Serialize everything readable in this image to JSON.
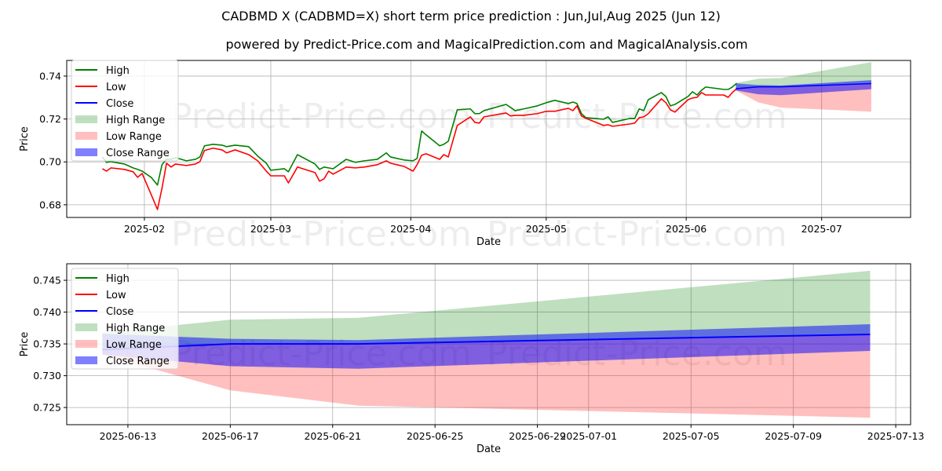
{
  "title": "CADBMD X (CADBMD=X) short term price prediction : Jun,Jul,Aug 2025 (Jun 12)",
  "subtitle": "powered by Predict-Price.com and MagicalPrediction.com and MagicalAnalysis.com",
  "watermark": "Predict-Price.com",
  "colors": {
    "high": "#008000",
    "low": "#ff0000",
    "close": "#0000ff",
    "high_range": "rgba(0,128,0,0.25)",
    "low_range": "rgba(255,0,0,0.25)",
    "close_range": "rgba(0,0,255,0.5)"
  },
  "legend": [
    "High",
    "Low",
    "Close",
    "High Range",
    "Low Range",
    "Close Range"
  ],
  "chart_data": [
    {
      "type": "line",
      "name": "full-history",
      "xlabel": "Date",
      "ylabel": "Price",
      "x_unit": "days since 2025-02-01",
      "xlim": [
        -17.2,
        169.7
      ],
      "ylim": [
        0.6741,
        0.7473
      ],
      "yticks": [
        0.68,
        0.7,
        0.72,
        0.74
      ],
      "ytick_labels": [
        "0.68",
        "0.70",
        "0.72",
        "0.74"
      ],
      "xticks": [
        0,
        28,
        59,
        89,
        120,
        150
      ],
      "xtick_labels": [
        "2025-02",
        "2025-03",
        "2025-04",
        "2025-05",
        "2025-06",
        "2025-07"
      ],
      "grid": true,
      "legend_position": "upper-left",
      "history": {
        "x": [
          -9.3,
          -8.4,
          -7.4,
          -4.4,
          -2.5,
          -1.5,
          -0.5,
          1.5,
          2.9,
          3.9,
          4.9,
          5.9,
          6.9,
          9.3,
          11.3,
          12.3,
          13.3,
          15.2,
          17.2,
          18.2,
          20.1,
          23.1,
          25.1,
          27.0,
          28.0,
          31.0,
          31.9,
          33.9,
          37.8,
          38.8,
          39.8,
          40.8,
          41.8,
          44.7,
          46.7,
          48.7,
          51.6,
          53.6,
          54.5,
          57.5,
          59.5,
          60.4,
          61.4,
          62.4,
          65.4,
          66.3,
          67.3,
          69.3,
          72.2,
          73.2,
          74.2,
          75.2,
          80.1,
          81.1,
          82.1,
          84.0,
          87.0,
          89.0,
          90.9,
          93.9,
          94.9,
          95.8,
          96.8,
          97.8,
          101.7,
          102.7,
          103.7,
          107.6,
          108.6,
          109.6,
          110.6,
          111.6,
          114.5,
          115.5,
          116.5,
          117.5,
          120.4,
          121.4,
          122.4,
          123.4,
          124.3,
          128.3,
          129.3,
          130.2,
          131.2
        ],
        "high": [
          0.7023,
          0.6998,
          0.7001,
          0.699,
          0.6972,
          0.6965,
          0.6957,
          0.6928,
          0.6892,
          0.6987,
          0.7012,
          0.7012,
          0.702,
          0.7005,
          0.7012,
          0.7023,
          0.7075,
          0.7082,
          0.7078,
          0.7071,
          0.7078,
          0.7071,
          0.7027,
          0.6994,
          0.6961,
          0.6968,
          0.6954,
          0.7034,
          0.699,
          0.6965,
          0.6976,
          0.6972,
          0.6968,
          0.7012,
          0.6998,
          0.7005,
          0.7012,
          0.7042,
          0.7023,
          0.7009,
          0.7005,
          0.7016,
          0.7144,
          0.7126,
          0.7075,
          0.7082,
          0.7096,
          0.7243,
          0.7247,
          0.7225,
          0.7225,
          0.7239,
          0.7268,
          0.7254,
          0.7239,
          0.7247,
          0.7261,
          0.7276,
          0.7287,
          0.7272,
          0.7279,
          0.7272,
          0.7225,
          0.7206,
          0.7199,
          0.721,
          0.7184,
          0.7203,
          0.7203,
          0.7247,
          0.7239,
          0.729,
          0.7323,
          0.7305,
          0.7261,
          0.7268,
          0.7305,
          0.7327,
          0.7312,
          0.7334,
          0.7349,
          0.7338,
          0.7338,
          0.7349,
          0.7367
        ],
        "low": [
          0.6968,
          0.6957,
          0.6972,
          0.6965,
          0.6954,
          0.6928,
          0.6946,
          0.6848,
          0.6778,
          0.6877,
          0.6994,
          0.6976,
          0.699,
          0.6983,
          0.699,
          0.7001,
          0.7053,
          0.7064,
          0.7056,
          0.7042,
          0.7056,
          0.7034,
          0.7005,
          0.6957,
          0.6935,
          0.6935,
          0.6902,
          0.6976,
          0.695,
          0.691,
          0.6921,
          0.6957,
          0.6943,
          0.6976,
          0.6972,
          0.6976,
          0.6987,
          0.7005,
          0.6994,
          0.6979,
          0.6957,
          0.6987,
          0.7031,
          0.7038,
          0.7012,
          0.7034,
          0.7023,
          0.717,
          0.721,
          0.7184,
          0.7181,
          0.721,
          0.7228,
          0.7214,
          0.7217,
          0.7217,
          0.7225,
          0.7236,
          0.7236,
          0.725,
          0.7239,
          0.7261,
          0.7214,
          0.7203,
          0.717,
          0.7173,
          0.7166,
          0.7177,
          0.7181,
          0.7206,
          0.721,
          0.7225,
          0.7294,
          0.7276,
          0.7243,
          0.7232,
          0.729,
          0.7298,
          0.7301,
          0.7323,
          0.7312,
          0.7312,
          0.7301,
          0.7323,
          0.7342
        ]
      }
    },
    {
      "type": "line",
      "name": "forecast-detail",
      "xlabel": "Date",
      "ylabel": "Price",
      "x_unit": "days since 2025-06-13",
      "xlim": [
        -2.39,
        30.58
      ],
      "ylim": [
        0.7223,
        0.7476
      ],
      "yticks": [
        0.725,
        0.73,
        0.735,
        0.74,
        0.745
      ],
      "ytick_labels": [
        "0.725",
        "0.730",
        "0.735",
        "0.740",
        "0.745"
      ],
      "xticks": [
        0,
        4,
        8,
        12,
        16,
        18,
        22,
        26,
        30
      ],
      "xtick_labels": [
        "2025-06-13",
        "2025-06-17",
        "2025-06-21",
        "2025-06-25",
        "2025-06-29",
        "2025-07-01",
        "2025-07-05",
        "2025-07-09",
        "2025-07-13"
      ],
      "grid": true,
      "legend_position": "upper-left"
    }
  ],
  "forecast": {
    "dates": [
      "2025-06-12",
      "2025-06-17",
      "2025-06-22",
      "2025-07-12"
    ],
    "close": [
      0.7341,
      0.735,
      0.735,
      0.7365
    ],
    "close_upper": [
      0.7366,
      0.7358,
      0.7356,
      0.7381
    ],
    "close_lower": [
      0.7333,
      0.7315,
      0.7311,
      0.7339
    ],
    "high_upper": [
      0.7368,
      0.7388,
      0.7391,
      0.7465
    ],
    "low_lower": [
      0.7333,
      0.7277,
      0.7253,
      0.7234
    ]
  }
}
